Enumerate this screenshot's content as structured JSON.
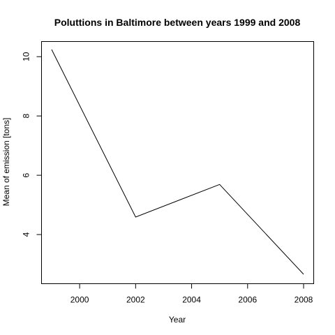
{
  "chart_data": {
    "type": "line",
    "title": "Poluttions in Baltimore between years 1999 and 2008",
    "xlabel": "Year",
    "ylabel": "Mean of emission [tons]",
    "x": [
      1999,
      2002,
      2005,
      2008
    ],
    "series": [
      {
        "values": [
          10.24,
          4.59,
          5.69,
          2.66
        ]
      }
    ],
    "xlim": [
      1999,
      2008
    ],
    "ylim": [
      2.66,
      10.24
    ],
    "xticks": [
      2000,
      2002,
      2004,
      2006,
      2008
    ],
    "yticks": [
      4,
      6,
      8,
      10
    ],
    "grid": false,
    "line_color": "#000000"
  }
}
